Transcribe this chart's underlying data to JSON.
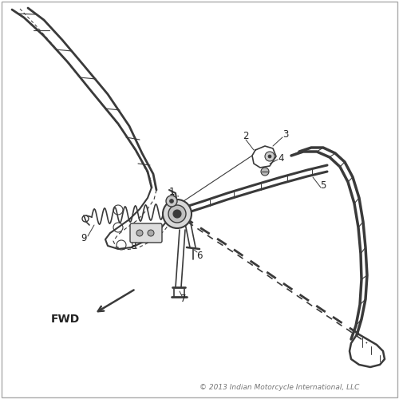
{
  "background_color": "#ffffff",
  "line_color": "#3a3a3a",
  "copyright_text": "© 2013 Indian Motorcycle International, LLC",
  "fwd_text": "FWD",
  "border_color": "#aaaaaa"
}
